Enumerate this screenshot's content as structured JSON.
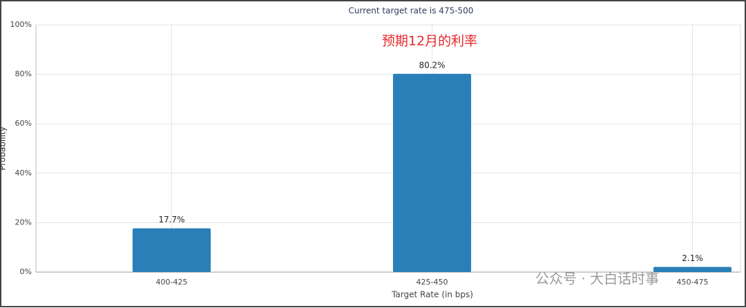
{
  "chart_data": {
    "type": "bar",
    "title": "Current target rate is 475-500",
    "x_label": "Target Rate (in bps)",
    "y_label": "Probability",
    "categories": [
      "400-425",
      "425-450",
      "450-475"
    ],
    "values": [
      17.7,
      80.2,
      2.1
    ],
    "value_labels": [
      "17.7%",
      "80.2%",
      "2.1%"
    ],
    "color": "#2a7fb8",
    "ylim": [
      0,
      100
    ],
    "yticks": [
      {
        "value": 0,
        "label": "0%"
      },
      {
        "value": 20,
        "label": "20%"
      },
      {
        "value": 40,
        "label": "40%"
      },
      {
        "value": 60,
        "label": "60%"
      },
      {
        "value": 80,
        "label": "80%"
      },
      {
        "value": 100,
        "label": "100%"
      }
    ],
    "grid": true,
    "annotation": "预期12月的利率",
    "watermark": "公众号 · 大白话时事"
  }
}
